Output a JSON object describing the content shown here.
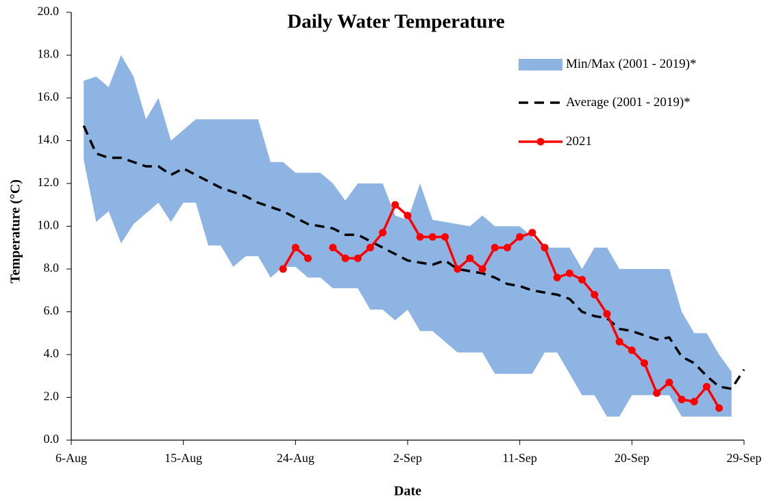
{
  "chart_data": {
    "type": "line",
    "title": "Daily Water Temperature",
    "x_label": "Date",
    "y_label": "Temperature (°C)",
    "x": [
      "7-Aug",
      "8-Aug",
      "9-Aug",
      "10-Aug",
      "11-Aug",
      "12-Aug",
      "13-Aug",
      "14-Aug",
      "15-Aug",
      "16-Aug",
      "17-Aug",
      "18-Aug",
      "19-Aug",
      "20-Aug",
      "21-Aug",
      "22-Aug",
      "23-Aug",
      "24-Aug",
      "25-Aug",
      "26-Aug",
      "27-Aug",
      "28-Aug",
      "29-Aug",
      "30-Aug",
      "31-Aug",
      "1-Sep",
      "2-Sep",
      "3-Sep",
      "4-Sep",
      "5-Sep",
      "6-Sep",
      "7-Sep",
      "8-Sep",
      "9-Sep",
      "10-Sep",
      "11-Sep",
      "12-Sep",
      "13-Sep",
      "14-Sep",
      "15-Sep",
      "16-Sep",
      "17-Sep",
      "18-Sep",
      "19-Sep",
      "20-Sep",
      "21-Sep",
      "22-Sep",
      "23-Sep",
      "24-Sep",
      "25-Sep",
      "26-Sep",
      "27-Sep",
      "28-Sep",
      "29-Sep"
    ],
    "xlim": [
      "6-Aug",
      "29-Sep"
    ],
    "xticks": [
      "6-Aug",
      "15-Aug",
      "24-Aug",
      "2-Sep",
      "11-Sep",
      "20-Sep",
      "29-Sep"
    ],
    "ylim": [
      0,
      20
    ],
    "yticks": [
      {
        "value": 0,
        "label": "0.0"
      },
      {
        "value": 2,
        "label": "2.0"
      },
      {
        "value": 4,
        "label": "4.0"
      },
      {
        "value": 6,
        "label": "6.0"
      },
      {
        "value": 8,
        "label": "8.0"
      },
      {
        "value": 10,
        "label": "10.0"
      },
      {
        "value": 12,
        "label": "12.0"
      },
      {
        "value": 14,
        "label": "14.0"
      },
      {
        "value": 16,
        "label": "16.0"
      },
      {
        "value": 18,
        "label": "18.0"
      },
      {
        "value": 20,
        "label": "20.0"
      }
    ],
    "series": [
      {
        "name": "Min/Max (2001 - 2019)*",
        "kind": "band",
        "color": "#8eb4e3",
        "low": [
          13.1,
          10.2,
          10.7,
          9.2,
          10.1,
          10.6,
          11.1,
          10.2,
          11.1,
          11.1,
          9.1,
          9.1,
          8.1,
          8.6,
          8.6,
          7.6,
          8.1,
          8.1,
          7.6,
          7.6,
          7.1,
          7.1,
          7.1,
          6.1,
          6.1,
          5.6,
          6.1,
          5.1,
          5.1,
          4.6,
          4.1,
          4.1,
          4.1,
          3.1,
          3.1,
          3.1,
          3.1,
          4.1,
          4.1,
          3.1,
          2.1,
          2.1,
          1.1,
          1.1,
          2.1,
          2.1,
          2.1,
          2.1,
          1.1,
          1.1,
          1.1,
          1.1,
          1.1,
          null
        ],
        "high": [
          16.8,
          17.0,
          16.5,
          18.0,
          17.0,
          15.0,
          16.0,
          14.0,
          14.5,
          15.0,
          15.0,
          15.0,
          15.0,
          15.0,
          15.0,
          13.0,
          13.0,
          12.5,
          12.5,
          12.5,
          12.0,
          11.2,
          12.0,
          12.0,
          12.0,
          10.5,
          10.3,
          12.0,
          10.3,
          10.2,
          10.1,
          10.0,
          10.5,
          10.0,
          10.0,
          10.0,
          9.5,
          9.0,
          9.0,
          9.0,
          8.0,
          9.0,
          9.0,
          8.0,
          8.0,
          8.0,
          8.0,
          8.0,
          6.0,
          5.0,
          5.0,
          4.0,
          3.2,
          null
        ]
      },
      {
        "name": "Average (2001 - 2019)*",
        "kind": "dashed",
        "color": "#000000",
        "values": [
          14.7,
          13.4,
          13.2,
          13.2,
          13.0,
          12.8,
          12.8,
          12.4,
          12.7,
          12.4,
          12.1,
          11.8,
          11.6,
          11.4,
          11.1,
          10.9,
          10.7,
          10.4,
          10.1,
          10.0,
          9.9,
          9.6,
          9.6,
          9.3,
          9.0,
          8.7,
          8.4,
          8.3,
          8.2,
          8.4,
          8.0,
          7.9,
          7.8,
          7.6,
          7.3,
          7.2,
          7.0,
          6.9,
          6.8,
          6.6,
          6.0,
          5.8,
          5.7,
          5.2,
          5.1,
          4.9,
          4.7,
          4.8,
          3.9,
          3.6,
          3.0,
          2.5,
          2.4,
          3.3
        ]
      },
      {
        "name": "2021",
        "kind": "markers",
        "color": "#ff0000",
        "values": [
          null,
          null,
          null,
          null,
          null,
          null,
          null,
          null,
          null,
          null,
          null,
          null,
          null,
          null,
          null,
          null,
          8.0,
          9.0,
          8.5,
          null,
          9.0,
          8.5,
          8.5,
          9.0,
          9.7,
          11.0,
          10.5,
          9.5,
          9.5,
          9.5,
          8.0,
          8.5,
          8.0,
          9.0,
          9.0,
          9.5,
          9.7,
          9.0,
          7.6,
          7.8,
          7.5,
          6.8,
          5.9,
          4.6,
          4.2,
          3.6,
          2.2,
          2.7,
          1.9,
          1.8,
          2.5,
          1.5,
          null,
          null
        ]
      }
    ]
  }
}
